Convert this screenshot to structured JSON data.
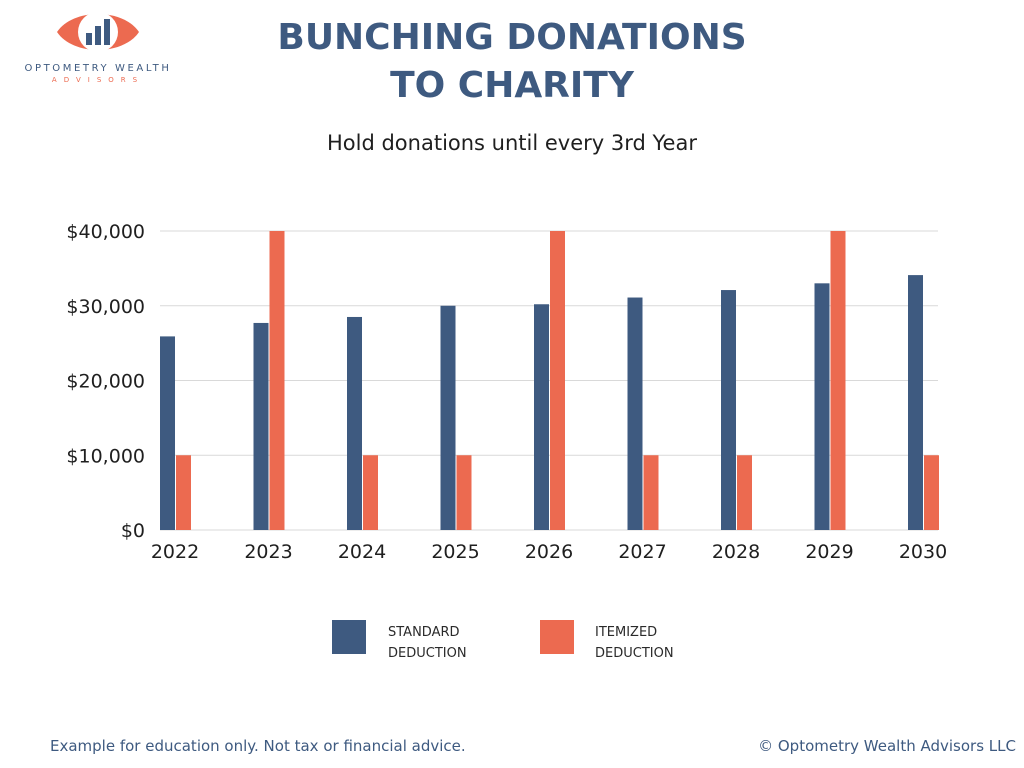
{
  "logo": {
    "name": "OPTOMETRY WEALTH",
    "subtitle": "ADVISORS",
    "icon": "eye-bar-chart-icon",
    "colors": {
      "accent": "#ec6a50",
      "navy": "#3e5a80"
    }
  },
  "header": {
    "title_lines": [
      "BUNCHING DONATIONS",
      "TO CHARITY"
    ],
    "subtitle": "Hold donations until every  3rd Year"
  },
  "chart_data": {
    "type": "bar",
    "categories": [
      "2022",
      "2023",
      "2024",
      "2025",
      "2026",
      "2027",
      "2028",
      "2029",
      "2030"
    ],
    "series": [
      {
        "name": "STANDARD DEDUCTION",
        "color": "#3e5a80",
        "values": [
          25900,
          27700,
          28500,
          30000,
          30200,
          31100,
          32100,
          33000,
          34100
        ]
      },
      {
        "name": "ITEMIZED DEDUCTION",
        "color": "#ec6a50",
        "values": [
          10000,
          40000,
          10000,
          10000,
          40000,
          10000,
          10000,
          40000,
          10000
        ]
      }
    ],
    "y_ticks": [
      "$0",
      "$10,000",
      "$20,000",
      "$30,000",
      "$40,000"
    ],
    "y_tick_values": [
      0,
      10000,
      20000,
      30000,
      40000
    ],
    "ylim": [
      0,
      40000
    ],
    "xlabel": "",
    "ylabel": "",
    "grid": true,
    "legend_position": "bottom"
  },
  "legend": {
    "items": [
      {
        "lines": [
          "STANDARD",
          "DEDUCTION"
        ],
        "color": "#3e5a80"
      },
      {
        "lines": [
          "ITEMIZED",
          "DEDUCTION"
        ],
        "color": "#ec6a50"
      }
    ]
  },
  "footer": {
    "disclaimer": "Example for education only. Not tax or financial advice.",
    "copyright": "© Optometry Wealth Advisors LLC"
  }
}
